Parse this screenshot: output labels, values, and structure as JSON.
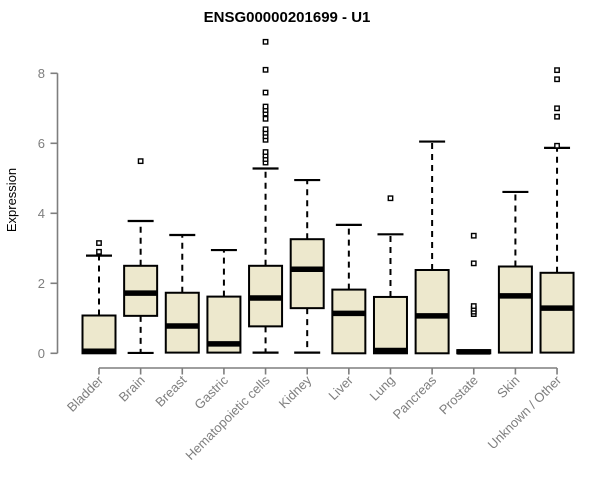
{
  "chart_data": {
    "type": "boxplot",
    "title": "ENSG00000201699 - U1",
    "ylabel": "Expression",
    "xlabel": "",
    "y_ticks": [
      0,
      2,
      4,
      6,
      8
    ],
    "ylim": [
      0,
      9
    ],
    "grid": false,
    "legend": "none",
    "categories": [
      "Bladder",
      "Brain",
      "Breast",
      "Gastric",
      "Hematopoietic cells",
      "Kidney",
      "Liver",
      "Lung",
      "Pancreas",
      "Prostate",
      "Skin",
      "Unknown / Other"
    ],
    "boxes": [
      {
        "category": "Bladder",
        "whisker_low": 0,
        "q1": 0,
        "median": 0.06,
        "q3": 1.08,
        "whisker_high": 2.79,
        "outliers": [
          2.9,
          3.15
        ]
      },
      {
        "category": "Brain",
        "whisker_low": 0.01,
        "q1": 1.07,
        "median": 1.72,
        "q3": 2.5,
        "whisker_high": 3.78,
        "outliers": [
          5.49
        ]
      },
      {
        "category": "Breast",
        "whisker_low": 0.02,
        "q1": 0.02,
        "median": 0.78,
        "q3": 1.73,
        "whisker_high": 3.38,
        "outliers": []
      },
      {
        "category": "Gastric",
        "whisker_low": 0.02,
        "q1": 0.02,
        "median": 0.27,
        "q3": 1.62,
        "whisker_high": 2.95,
        "outliers": []
      },
      {
        "category": "Hematopoietic cells",
        "whisker_low": 0.02,
        "q1": 0.77,
        "median": 1.58,
        "q3": 2.5,
        "whisker_high": 5.28,
        "outliers": [
          5.45,
          5.55,
          5.65,
          5.75,
          6.1,
          6.2,
          6.3,
          6.4,
          6.7,
          6.85,
          6.95,
          7.05,
          7.45,
          8.1,
          8.9
        ]
      },
      {
        "category": "Kidney",
        "whisker_low": 0.02,
        "q1": 1.29,
        "median": 2.4,
        "q3": 3.26,
        "whisker_high": 4.95,
        "outliers": []
      },
      {
        "category": "Liver",
        "whisker_low": 0,
        "q1": 0,
        "median": 1.14,
        "q3": 1.82,
        "whisker_high": 3.67,
        "outliers": []
      },
      {
        "category": "Lung",
        "whisker_low": 0,
        "q1": 0,
        "median": 0.08,
        "q3": 1.61,
        "whisker_high": 3.4,
        "outliers": [
          4.43
        ]
      },
      {
        "category": "Pancreas",
        "whisker_low": 0,
        "q1": 0,
        "median": 1.07,
        "q3": 2.38,
        "whisker_high": 6.05,
        "outliers": []
      },
      {
        "category": "Prostate",
        "whisker_low": 0,
        "q1": 0,
        "median": 0.04,
        "q3": 0.09,
        "whisker_high": 0.09,
        "outliers": [
          1.12,
          1.19,
          1.27,
          1.35,
          2.57,
          3.36
        ]
      },
      {
        "category": "Skin",
        "whisker_low": 0.02,
        "q1": 0.02,
        "median": 1.64,
        "q3": 2.48,
        "whisker_high": 4.61,
        "outliers": []
      },
      {
        "category": "Unknown / Other",
        "whisker_low": 0.02,
        "q1": 0.02,
        "median": 1.29,
        "q3": 2.3,
        "whisker_high": 5.87,
        "outliers": [
          5.93,
          6.76,
          7.0,
          7.83,
          8.09
        ]
      }
    ]
  },
  "colors": {
    "box_fill": "#EDE8CD",
    "box_stroke": "#000000",
    "median": "#000000",
    "whisker": "#000000",
    "outlier_stroke": "#000000",
    "axis": "#7E7E7E",
    "title": "#000000",
    "background": "#FFFFFF"
  }
}
